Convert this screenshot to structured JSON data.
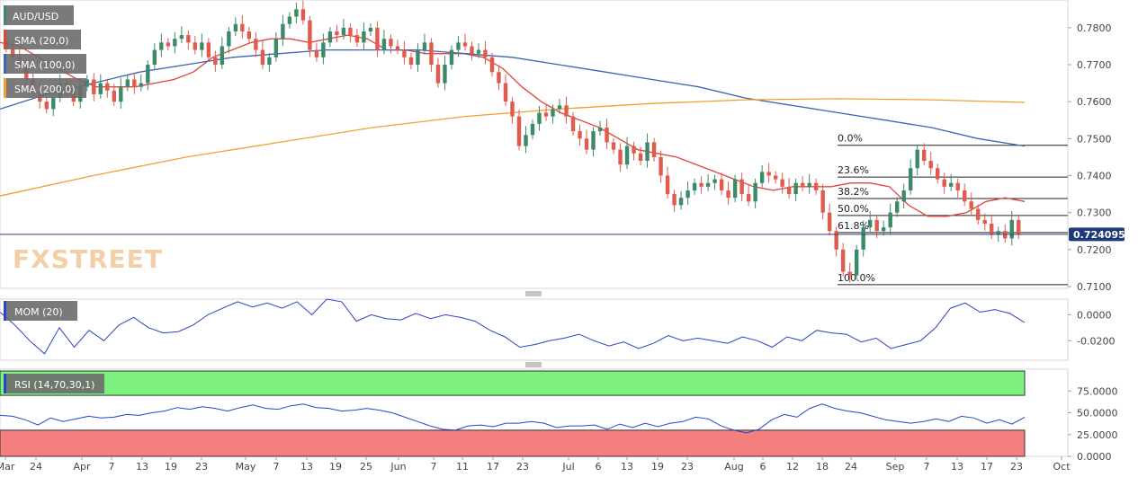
{
  "instrument": "AUD/USD",
  "indicators": [
    {
      "label": "SMA (20,0)",
      "color": "#e0453a"
    },
    {
      "label": "SMA (100,0)",
      "color": "#3f63b7"
    },
    {
      "label": "SMA (200,0)",
      "color": "#f0a030"
    }
  ],
  "watermark": "FXSTREET",
  "current_price": "0.724095",
  "mom_label": "MOM (20)",
  "rsi_label": "RSI (14,70,30,1)",
  "colors": {
    "up": "#3d8a6a",
    "down": "#e05a4e",
    "sma20": "#e0453a",
    "sma100": "#3f63b7",
    "sma200": "#f0a030",
    "mom": "#2844c8",
    "rsi": "#2844c8",
    "rsi_over": "#7ef07e",
    "rsi_under": "#f57f7f"
  },
  "chart_data": [
    {
      "type": "candlestick",
      "title": "AUD/USD",
      "ylim": [
        0.7095,
        0.7875
      ],
      "y_ticks": [
        "0.7800",
        "0.7700",
        "0.7600",
        "0.7500",
        "0.7400",
        "0.7300",
        "0.7200",
        "0.7100"
      ],
      "x_ticks": [
        "Mar",
        "24",
        "Apr",
        "7",
        "13",
        "19",
        "23",
        "May",
        "7",
        "13",
        "19",
        "25",
        "Jun",
        "7",
        "11",
        "17",
        "23",
        "Jul",
        "6",
        "13",
        "19",
        "23",
        "Aug",
        "6",
        "12",
        "18",
        "24",
        "Sep",
        "7",
        "13",
        "17",
        "23",
        "Oct"
      ],
      "fibonacci": [
        {
          "label": "0.0%",
          "value": 0.7482
        },
        {
          "label": "23.6%",
          "value": 0.7396
        },
        {
          "label": "38.2%",
          "value": 0.7338
        },
        {
          "label": "50.0%",
          "value": 0.7292
        },
        {
          "label": "61.8%",
          "value": 0.7246
        },
        {
          "label": "100.0%",
          "value": 0.7105
        }
      ],
      "current_price": 0.724095,
      "closes": [
        0.7745,
        0.772,
        0.77,
        0.766,
        0.763,
        0.76,
        0.758,
        0.761,
        0.765,
        0.763,
        0.76,
        0.764,
        0.766,
        0.762,
        0.765,
        0.763,
        0.76,
        0.764,
        0.766,
        0.764,
        0.765,
        0.77,
        0.774,
        0.776,
        0.775,
        0.777,
        0.778,
        0.776,
        0.774,
        0.776,
        0.772,
        0.77,
        0.775,
        0.779,
        0.781,
        0.779,
        0.777,
        0.774,
        0.77,
        0.772,
        0.777,
        0.781,
        0.783,
        0.785,
        0.782,
        0.774,
        0.772,
        0.776,
        0.779,
        0.778,
        0.78,
        0.778,
        0.776,
        0.779,
        0.78,
        0.774,
        0.777,
        0.775,
        0.774,
        0.772,
        0.77,
        0.774,
        0.776,
        0.77,
        0.765,
        0.77,
        0.774,
        0.776,
        0.775,
        0.773,
        0.774,
        0.772,
        0.768,
        0.765,
        0.76,
        0.756,
        0.748,
        0.751,
        0.754,
        0.757,
        0.756,
        0.758,
        0.759,
        0.756,
        0.752,
        0.75,
        0.747,
        0.752,
        0.753,
        0.749,
        0.747,
        0.743,
        0.748,
        0.746,
        0.744,
        0.749,
        0.745,
        0.74,
        0.735,
        0.732,
        0.734,
        0.736,
        0.738,
        0.737,
        0.738,
        0.739,
        0.736,
        0.734,
        0.739,
        0.735,
        0.733,
        0.738,
        0.741,
        0.74,
        0.739,
        0.737,
        0.735,
        0.738,
        0.737,
        0.738,
        0.736,
        0.73,
        0.725,
        0.72,
        0.714,
        0.713,
        0.72,
        0.726,
        0.728,
        0.725,
        0.726,
        0.73,
        0.733,
        0.736,
        0.742,
        0.747,
        0.744,
        0.742,
        0.739,
        0.737,
        0.738,
        0.736,
        0.733,
        0.731,
        0.728,
        0.727,
        0.724,
        0.725,
        0.723,
        0.728,
        0.724
      ],
      "series": [
        {
          "name": "SMA (20,0)",
          "values": [
            0.776,
            0.775,
            0.772,
            0.769,
            0.766,
            0.764,
            0.764,
            0.764,
            0.765,
            0.766,
            0.768,
            0.772,
            0.774,
            0.776,
            0.777,
            0.777,
            0.776,
            0.777,
            0.778,
            0.777,
            0.774,
            0.774,
            0.773,
            0.773,
            0.773,
            0.772,
            0.769,
            0.764,
            0.76,
            0.757,
            0.755,
            0.753,
            0.75,
            0.747,
            0.746,
            0.745,
            0.743,
            0.741,
            0.739,
            0.737,
            0.736,
            0.737,
            0.737,
            0.737,
            0.738,
            0.738,
            0.737,
            0.732,
            0.729,
            0.729,
            0.73,
            0.733,
            0.734,
            0.733
          ]
        },
        {
          "name": "SMA (100,0)",
          "values": [
            0.758,
            0.762,
            0.765,
            0.768,
            0.77,
            0.772,
            0.773,
            0.774,
            0.774,
            0.774,
            0.773,
            0.772,
            0.77,
            0.768,
            0.766,
            0.764,
            0.761,
            0.759,
            0.757,
            0.755,
            0.753,
            0.75,
            0.748
          ]
        },
        {
          "name": "SMA (200,0)",
          "values": [
            0.7345,
            0.74,
            0.745,
            0.749,
            0.753,
            0.756,
            0.758,
            0.7595,
            0.7605,
            0.7608,
            0.7605,
            0.7598
          ]
        }
      ]
    },
    {
      "type": "line",
      "title": "MOM (20)",
      "ylim": [
        -0.035,
        0.012
      ],
      "y_ticks": [
        "0.0000",
        "-0.0200"
      ],
      "y_tick_values": [
        0.0,
        -0.02
      ],
      "series": [
        {
          "name": "MOM (20)",
          "values": [
            0.002,
            -0.008,
            -0.02,
            -0.03,
            -0.01,
            -0.025,
            -0.012,
            -0.02,
            -0.008,
            -0.002,
            -0.01,
            -0.014,
            -0.013,
            -0.008,
            0.0,
            0.005,
            0.01,
            0.006,
            0.009,
            0.005,
            0.01,
            0.0,
            0.012,
            0.01,
            -0.005,
            0.0,
            -0.003,
            -0.004,
            0.001,
            -0.003,
            0.0,
            -0.002,
            -0.005,
            -0.012,
            -0.017,
            -0.025,
            -0.023,
            -0.02,
            -0.018,
            -0.015,
            -0.02,
            -0.024,
            -0.021,
            -0.026,
            -0.022,
            -0.016,
            -0.02,
            -0.018,
            -0.02,
            -0.022,
            -0.017,
            -0.02,
            -0.025,
            -0.017,
            -0.02,
            -0.012,
            -0.014,
            -0.015,
            -0.021,
            -0.018,
            -0.026,
            -0.023,
            -0.02,
            -0.01,
            0.005,
            0.009,
            0.002,
            0.004,
            0.001,
            -0.006
          ]
        }
      ]
    },
    {
      "type": "line",
      "title": "RSI (14,70,30,1)",
      "ylim": [
        0,
        100
      ],
      "y_ticks": [
        "75.0000",
        "50.0000",
        "25.0000",
        "0.0000"
      ],
      "y_tick_values": [
        75,
        50,
        25,
        0
      ],
      "bands": {
        "upper": 70,
        "lower": 30
      },
      "series": [
        {
          "name": "RSI (14,70,30,1)",
          "values": [
            47,
            46,
            42,
            36,
            44,
            40,
            43,
            46,
            44,
            45,
            48,
            47,
            50,
            52,
            56,
            54,
            57,
            55,
            52,
            56,
            59,
            55,
            54,
            58,
            60,
            56,
            55,
            52,
            53,
            55,
            53,
            50,
            45,
            40,
            35,
            31,
            30,
            35,
            36,
            34,
            38,
            38,
            40,
            38,
            33,
            35,
            35,
            36,
            31,
            37,
            33,
            38,
            34,
            38,
            40,
            45,
            43,
            35,
            30,
            27,
            31,
            42,
            48,
            45,
            55,
            60,
            55,
            52,
            50,
            46,
            42,
            40,
            38,
            40,
            43,
            40,
            46,
            44,
            38,
            42,
            37,
            45
          ]
        }
      ]
    }
  ]
}
